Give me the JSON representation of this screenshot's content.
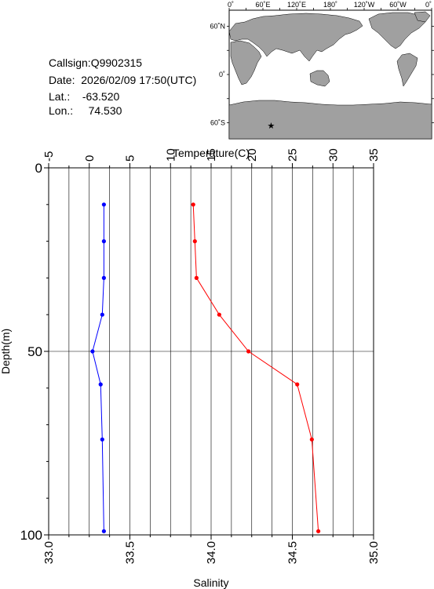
{
  "info": {
    "callsign": "Callsign:Q9902315",
    "date": "Date:  2026/02/09 17:50(UTC)",
    "lat_label": "Lat.:",
    "lat_value": "-63.520",
    "lon_label": "Lon.:",
    "lon_value": "74.530"
  },
  "map": {
    "lon_labels": [
      "0˚",
      "60˚E",
      "120˚E",
      "180˚",
      "120˚W",
      "60˚W",
      "0˚"
    ],
    "lat_labels": [
      "60˚N",
      "0˚",
      "60˚S"
    ],
    "marker": {
      "lat": -63.52,
      "lon": 74.53,
      "color": "#ff0000"
    },
    "land_color": "#a0a0a0"
  },
  "chart_data": {
    "type": "line",
    "xlabel_top": "Temperature(C)",
    "xlabel_bottom": "Salinity",
    "ylabel": "Depth(m)",
    "temperature_range": [
      -5,
      35
    ],
    "temperature_ticks": [
      "-5",
      "0",
      "5",
      "10",
      "15",
      "20",
      "25",
      "30",
      "35"
    ],
    "salinity_range": [
      33.0,
      35.0
    ],
    "salinity_ticks": [
      "33.0",
      "33.5",
      "34.0",
      "34.5",
      "35.0"
    ],
    "depth_range": [
      0,
      100
    ],
    "depth_ticks": [
      "0",
      "50",
      "100"
    ],
    "series": [
      {
        "axis": "salinity",
        "color": "#0000ff",
        "points": [
          [
            33.34,
            10
          ],
          [
            33.34,
            20
          ],
          [
            33.34,
            30
          ],
          [
            33.33,
            40
          ],
          [
            33.27,
            50
          ],
          [
            33.32,
            59
          ],
          [
            33.33,
            74
          ],
          [
            33.34,
            99
          ]
        ]
      },
      {
        "axis": "salinity",
        "color": "#ff0000",
        "points": [
          [
            33.89,
            10
          ],
          [
            33.9,
            20
          ],
          [
            33.91,
            30
          ],
          [
            34.05,
            40
          ],
          [
            34.23,
            50
          ],
          [
            34.53,
            59
          ],
          [
            34.62,
            74
          ],
          [
            34.66,
            99
          ]
        ]
      }
    ]
  }
}
